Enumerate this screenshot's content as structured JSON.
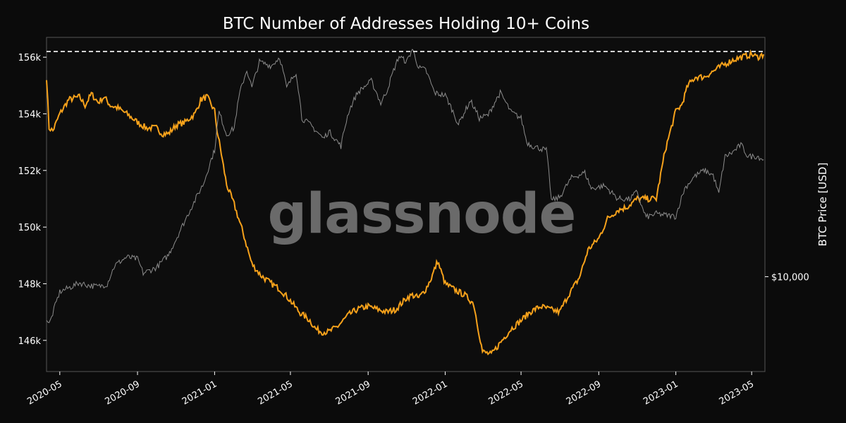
{
  "chart_data": {
    "type": "line",
    "title": "BTC Number of Addresses Holding 10+ Coins",
    "watermark": "glassnode",
    "xlabel": "",
    "ylabel": "",
    "y2label": "BTC Price [USD]",
    "ylim": [
      144900,
      156700
    ],
    "y_ticks": [
      146000,
      148000,
      150000,
      152000,
      154000,
      156000
    ],
    "y_tick_labels": [
      "146k",
      "148k",
      "150k",
      "152k",
      "154k",
      "156k"
    ],
    "y2_ticks": [
      10000
    ],
    "y2_tick_labels": [
      "$10,000"
    ],
    "y2_scale": "log",
    "y2lim": [
      4500,
      75000
    ],
    "x_range": [
      "2020-04-10",
      "2023-05-22"
    ],
    "x_ticks": [
      "2020-05-01",
      "2020-09-01",
      "2021-01-01",
      "2021-05-01",
      "2021-09-01",
      "2022-01-01",
      "2022-05-01",
      "2022-09-01",
      "2023-01-01",
      "2023-05-01"
    ],
    "x_tick_labels": [
      "2020-05",
      "2020-09",
      "2021-01",
      "2021-05",
      "2021-09",
      "2022-01",
      "2022-05",
      "2022-09",
      "2023-01",
      "2023-05"
    ],
    "grid": false,
    "reference_line": {
      "value": 156200,
      "style": "dashed",
      "color": "#ffffff"
    },
    "series": [
      {
        "key": "addresses",
        "axis": "left",
        "color": "#f7a21b",
        "x": [
          "2020-04-10",
          "2020-04-14",
          "2020-04-20",
          "2020-05-01",
          "2020-05-15",
          "2020-06-01",
          "2020-06-10",
          "2020-06-20",
          "2020-07-01",
          "2020-07-10",
          "2020-07-20",
          "2020-08-01",
          "2020-08-15",
          "2020-09-01",
          "2020-09-15",
          "2020-10-01",
          "2020-10-10",
          "2020-10-20",
          "2020-11-01",
          "2020-11-15",
          "2020-12-01",
          "2020-12-10",
          "2020-12-20",
          "2021-01-01",
          "2021-01-05",
          "2021-01-10",
          "2021-01-20",
          "2021-02-01",
          "2021-02-15",
          "2021-03-01",
          "2021-03-15",
          "2021-04-01",
          "2021-04-15",
          "2021-05-01",
          "2021-05-15",
          "2021-06-01",
          "2021-06-10",
          "2021-06-20",
          "2021-07-01",
          "2021-07-15",
          "2021-08-01",
          "2021-08-15",
          "2021-09-01",
          "2021-09-15",
          "2021-10-01",
          "2021-10-15",
          "2021-11-01",
          "2021-11-10",
          "2021-11-20",
          "2021-12-01",
          "2021-12-10",
          "2021-12-20",
          "2022-01-01",
          "2022-01-15",
          "2022-02-01",
          "2022-02-15",
          "2022-03-01",
          "2022-03-15",
          "2022-04-01",
          "2022-04-15",
          "2022-05-01",
          "2022-05-15",
          "2022-06-01",
          "2022-06-15",
          "2022-07-01",
          "2022-07-15",
          "2022-08-01",
          "2022-08-15",
          "2022-09-01",
          "2022-09-15",
          "2022-10-01",
          "2022-10-15",
          "2022-11-01",
          "2022-11-10",
          "2022-11-20",
          "2022-12-01",
          "2022-12-15",
          "2023-01-01",
          "2023-01-10",
          "2023-01-20",
          "2023-02-01",
          "2023-02-15",
          "2023-03-01",
          "2023-03-15",
          "2023-04-01",
          "2023-04-15",
          "2023-05-01",
          "2023-05-10",
          "2023-05-20"
        ],
        "values": [
          155300,
          153500,
          153400,
          154000,
          154500,
          154600,
          154300,
          154700,
          154400,
          154600,
          154300,
          154200,
          154000,
          153700,
          153500,
          153500,
          153300,
          153300,
          153600,
          153700,
          154000,
          154500,
          154600,
          154100,
          153400,
          152800,
          151500,
          150800,
          149800,
          148700,
          148300,
          148000,
          147800,
          147400,
          147000,
          146700,
          146400,
          146300,
          146300,
          146500,
          146900,
          147100,
          147200,
          147100,
          147000,
          147100,
          147500,
          147600,
          147500,
          147800,
          148200,
          148800,
          148000,
          147800,
          147600,
          147300,
          145600,
          145500,
          146000,
          146400,
          146700,
          147000,
          147200,
          147100,
          147000,
          147600,
          148200,
          149200,
          149600,
          150300,
          150600,
          150700,
          151000,
          151000,
          151000,
          151000,
          152700,
          154100,
          154300,
          155000,
          155300,
          155300,
          155500,
          155700,
          155900,
          156000,
          156100,
          156000,
          156100
        ]
      },
      {
        "key": "btc_price",
        "axis": "right",
        "color": "#8c8c8c",
        "x": [
          "2020-04-10",
          "2020-04-14",
          "2020-04-18",
          "2020-05-01",
          "2020-05-10",
          "2020-05-20",
          "2020-06-01",
          "2020-06-15",
          "2020-07-01",
          "2020-07-15",
          "2020-07-27",
          "2020-08-15",
          "2020-09-01",
          "2020-09-10",
          "2020-10-01",
          "2020-10-20",
          "2020-11-01",
          "2020-11-15",
          "2020-12-01",
          "2020-12-15",
          "2021-01-01",
          "2021-01-08",
          "2021-01-20",
          "2021-02-01",
          "2021-02-10",
          "2021-02-21",
          "2021-03-01",
          "2021-03-13",
          "2021-04-01",
          "2021-04-14",
          "2021-04-25",
          "2021-05-10",
          "2021-05-19",
          "2021-06-01",
          "2021-06-22",
          "2021-07-01",
          "2021-07-20",
          "2021-08-01",
          "2021-08-15",
          "2021-09-06",
          "2021-09-21",
          "2021-10-01",
          "2021-10-20",
          "2021-11-01",
          "2021-11-10",
          "2021-11-20",
          "2021-12-01",
          "2021-12-15",
          "2022-01-01",
          "2022-01-22",
          "2022-02-10",
          "2022-02-24",
          "2022-03-10",
          "2022-03-29",
          "2022-04-15",
          "2022-05-01",
          "2022-05-10",
          "2022-05-20",
          "2022-06-10",
          "2022-06-18",
          "2022-07-01",
          "2022-07-20",
          "2022-08-10",
          "2022-08-20",
          "2022-09-10",
          "2022-10-01",
          "2022-10-20",
          "2022-11-01",
          "2022-11-08",
          "2022-11-15",
          "2022-12-01",
          "2022-12-15",
          "2023-01-01",
          "2023-01-15",
          "2023-01-30",
          "2023-02-15",
          "2023-03-01",
          "2023-03-10",
          "2023-03-20",
          "2023-04-01",
          "2023-04-14",
          "2023-04-25",
          "2023-05-10",
          "2023-05-20"
        ],
        "values": [
          7000,
          6700,
          7100,
          8800,
          9000,
          9200,
          9500,
          9300,
          9200,
          9400,
          11000,
          11800,
          11600,
          10300,
          10800,
          12000,
          13700,
          16000,
          19000,
          22000,
          29000,
          40000,
          33000,
          35000,
          47000,
          57000,
          49000,
          61000,
          59000,
          63500,
          49000,
          56000,
          38000,
          36000,
          32000,
          34000,
          30000,
          40000,
          47000,
          52000,
          43000,
          48000,
          64000,
          61000,
          68000,
          58000,
          57000,
          47000,
          46000,
          36000,
          44000,
          38000,
          39000,
          47000,
          40000,
          38000,
          31000,
          30000,
          29000,
          19000,
          19500,
          23000,
          24000,
          21000,
          21500,
          19300,
          19200,
          20500,
          18000,
          16500,
          17000,
          16800,
          16600,
          21000,
          23200,
          24500,
          23500,
          20000,
          27500,
          28500,
          30400,
          27500,
          27600,
          26800
        ]
      }
    ]
  }
}
